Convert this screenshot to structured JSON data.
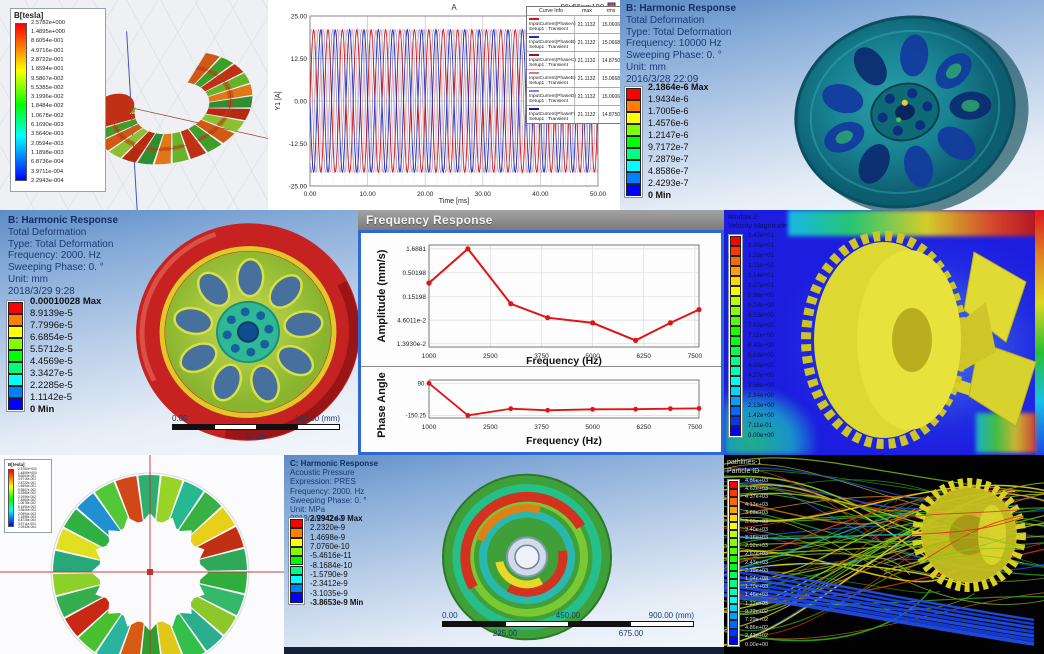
{
  "panels": {
    "maxwell_torus": {
      "legend_title": "B[tesla]",
      "legend_values": [
        "2.5782e+000",
        "1.4895e+000",
        "8.6054e-001",
        "4.9716e-001",
        "2.8722e-001",
        "1.6594e-001",
        "9.5867e-002",
        "5.5385e-002",
        "3.1996e-002",
        "1.8484e-002",
        "1.0678e-002",
        "6.1690e-003",
        "3.5640e-003",
        "2.0594e-003",
        "1.1898e-003",
        "6.8736e-004",
        "3.9711e-004",
        "2.2943e-004"
      ]
    },
    "harmonic_10000": {
      "title": "B: Harmonic Response",
      "lines": [
        "Total Deformation",
        "Type: Total Deformation",
        "Frequency: 10000 Hz",
        "Sweeping Phase: 0. °",
        "Unit: mm",
        "2016/3/28 22:09"
      ],
      "legend_values": [
        "2.1864e-6 Max",
        "1.9434e-6",
        "1.7005e-6",
        "1.4576e-6",
        "1.2147e-6",
        "9.7172e-7",
        "7.2879e-7",
        "4.8586e-7",
        "2.4293e-7",
        "0 Min"
      ]
    },
    "harmonic_2000": {
      "title": "B: Harmonic Response",
      "lines": [
        "Total Deformation",
        "Type: Total Deformation",
        "Frequency: 2000. Hz",
        "Sweeping Phase: 0. °",
        "Unit: mm",
        "2018/3/29 9:28"
      ],
      "legend_values": [
        "0.00010028 Max",
        "8.9139e-5",
        "7.7996e-5",
        "6.6854e-5",
        "5.5712e-5",
        "4.4569e-5",
        "3.3427e-5",
        "2.2285e-5",
        "1.1142e-5",
        "0 Min"
      ],
      "ruler_top": [
        "0.00",
        "100.00 (mm)"
      ],
      "ruler_bottom": [
        "50.00"
      ]
    },
    "cfd_velocity": {
      "legend_title_lines": [
        "window 2.",
        "Velocity Magnitude"
      ],
      "legend_values": [
        "1.42e+01",
        "1.35e+01",
        "1.28e+01",
        "1.21e+01",
        "1.14e+01",
        "1.07e+01",
        "9.96e+00",
        "9.24e+00",
        "8.53e+00",
        "7.82e+00",
        "7.11e+00",
        "6.40e+00",
        "5.69e+00",
        "4.98e+00",
        "4.27e+00",
        "3.56e+00",
        "2.84e+00",
        "2.13e+00",
        "1.42e+00",
        "7.11e-01",
        "0.00e+00"
      ]
    },
    "maxwell_ring": {
      "legend_title": "B[tesla]",
      "legend_values": [
        "2.5782e+000",
        "1.4895e+000",
        "8.6054e-001",
        "4.9716e-001",
        "2.8722e-001",
        "1.6594e-001",
        "9.5867e-002",
        "5.5385e-002",
        "3.1996e-002",
        "1.8484e-002",
        "1.0678e-002",
        "6.1690e-003",
        "3.5640e-003",
        "2.0594e-003",
        "1.1898e-003",
        "6.8736e-004",
        "3.9711e-004",
        "2.2943e-004"
      ]
    },
    "acoustic": {
      "title": "C: Harmonic Response",
      "lines": [
        "Acoustic Pressure",
        "Expression: PRES",
        "Frequency: 2000. Hz",
        "Sweeping Phase: 0. °",
        "Unit: MPa",
        "2018/3/29 0:43"
      ],
      "legend_values": [
        "2.9942e-9 Max",
        "2.2320e-9",
        "1.4698e-9",
        "7.0760e-10",
        "-5.4616e-11",
        "-8.1684e-10",
        "-1.5790e-9",
        "-2.3412e-9",
        "-3.1035e-9",
        "-3.8653e-9 Min"
      ],
      "ruler_top": [
        "0.00",
        "450.00",
        "900.00 (mm)"
      ],
      "ruler_bottom": [
        "225.00",
        "675.00"
      ]
    },
    "pathlines": {
      "legend_title_lines": [
        "pathlines-1",
        "Particle ID"
      ],
      "legend_values": [
        "4.86e+03",
        "4.62e+03",
        "4.37e+03",
        "4.13e+03",
        "3.89e+03",
        "3.65e+03",
        "3.40e+03",
        "3.16e+03",
        "2.92e+03",
        "2.67e+03",
        "2.43e+03",
        "2.19e+03",
        "1.94e+03",
        "1.70e+03",
        "1.46e+03",
        "1.22e+03",
        "9.72e+02",
        "7.29e+02",
        "4.86e+02",
        "2.43e+02",
        "0.00e+00"
      ]
    }
  },
  "chart_data": [
    {
      "id": "input-currents",
      "type": "line",
      "title": "A",
      "corner_label": "96v55nm180",
      "xlabel": "Time [ms]",
      "ylabel": "Y1 [A]",
      "xlim": [
        0,
        50
      ],
      "ylim": [
        -25,
        25
      ],
      "x_ticks": [
        "0.00",
        "10.00",
        "20.00",
        "30.00",
        "40.00",
        "50.00"
      ],
      "x_tick_values": [
        0,
        10,
        20,
        30,
        40,
        50
      ],
      "y_ticks": [
        "25.00",
        "12.50",
        "0.00",
        "-12.50",
        "-25.00"
      ],
      "y_tick_values": [
        25,
        12.5,
        0,
        -12.5,
        -25
      ],
      "waveform": {
        "amplitude": 21.1132,
        "period_ms": 2.5,
        "phase_offsets_deg": [
          0,
          180,
          120,
          300,
          60,
          240
        ]
      },
      "legend_header": [
        "Curve Info",
        "max",
        "rms"
      ],
      "series": [
        {
          "name": "InputCurrent(PhaseA)",
          "setup": "Setup1 : Transient",
          "max": "21.1132",
          "rms": "15.0606",
          "color": "#d01818"
        },
        {
          "name": "InputCurrent(PhaseB)",
          "setup": "Setup1 : Transient",
          "max": "21.1132",
          "rms": "15.0668",
          "color": "#1830c8"
        },
        {
          "name": "InputCurrent(PhaseC)",
          "setup": "Setup1 : Transient",
          "max": "21.1132",
          "rms": "14.8750",
          "color": "#8c1a1a"
        },
        {
          "name": "InputCurrent(PhaseE)",
          "setup": "Setup1 : Transient",
          "max": "21.1132",
          "rms": "15.0668",
          "color": "#d87a7a"
        },
        {
          "name": "InputCurrent(PhaseD)",
          "setup": "Setup1 : Transient",
          "max": "21.1132",
          "rms": "15.0606",
          "color": "#7a86d8"
        },
        {
          "name": "InputCurrent(PhaseF)",
          "setup": "Setup1 : Transient",
          "max": "21.1132",
          "rms": "14.8750",
          "color": "#28188c"
        }
      ]
    },
    {
      "id": "freq-amplitude",
      "type": "line",
      "window_title": "Frequency Response",
      "xlabel": "Frequency (Hz)",
      "ylabel": "Amplitude (mm/s)",
      "x": [
        1000,
        1950,
        3000,
        3900,
        5000,
        6050,
        6900,
        7600
      ],
      "y": [
        0.3,
        1.6881,
        0.105,
        0.052,
        0.04,
        0.0165,
        0.04,
        0.078
      ],
      "yscale": "log",
      "line_color": "#e01414",
      "y_ticks": [
        "1.6881",
        "0.50198",
        "0.15198",
        "4.6011e-2",
        "1.3930e-2"
      ],
      "y_tick_values": [
        1.6881,
        0.50198,
        0.15198,
        0.046011,
        0.01393
      ],
      "x_ticks": [
        "1000",
        "2500",
        "3750",
        "5000",
        "6250",
        "7500"
      ],
      "x_tick_values": [
        1000,
        2500,
        3750,
        5000,
        6250,
        7500
      ],
      "xlim": [
        1000,
        7600
      ]
    },
    {
      "id": "freq-phase",
      "type": "line",
      "xlabel": "Frequency (Hz)",
      "ylabel": "Phase Angle",
      "x": [
        1000,
        1950,
        3000,
        3900,
        5000,
        6050,
        6900,
        7600
      ],
      "y": [
        90,
        -150.25,
        -100,
        -112,
        -105,
        -104,
        -100,
        -98
      ],
      "line_color": "#e01414",
      "y_ticks": [
        "90.",
        "-150.25"
      ],
      "y_tick_values": [
        90,
        -150.25
      ],
      "x_ticks": [
        "1000",
        "2500",
        "3750",
        "5000",
        "6250",
        "7500"
      ],
      "x_tick_values": [
        1000,
        2500,
        3750,
        5000,
        6250,
        7500
      ],
      "xlim": [
        1000,
        7600
      ],
      "ylim": [
        -170,
        115
      ]
    }
  ]
}
